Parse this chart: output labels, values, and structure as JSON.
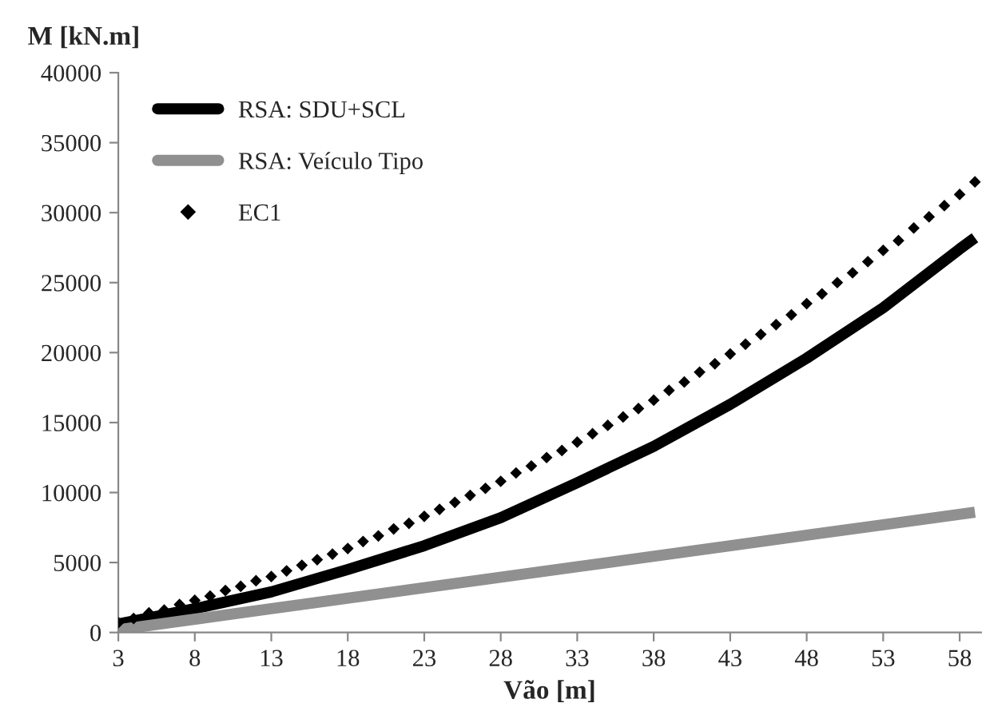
{
  "chart_data": {
    "type": "line",
    "xlabel": "Vão [m]",
    "ylabel": "M [kN.m]",
    "xlim": [
      3,
      59.4
    ],
    "xticks": [
      3,
      8,
      13,
      18,
      23,
      28,
      33,
      38,
      43,
      48,
      53,
      58
    ],
    "ylim": [
      0,
      40000
    ],
    "yticks": [
      0,
      5000,
      10000,
      15000,
      20000,
      25000,
      30000,
      35000,
      40000
    ],
    "grid": false,
    "legend": "top left",
    "series": [
      {
        "name": "RSA: SDU+SCL",
        "color": "#000000",
        "x": [
          3,
          8,
          13,
          18,
          23,
          28,
          33,
          38,
          43,
          48,
          53,
          58,
          59
        ],
        "values": [
          600,
          1700,
          2900,
          4500,
          6200,
          8200,
          10700,
          13300,
          16300,
          19600,
          23200,
          27400,
          28200
        ]
      },
      {
        "name": "RSA: Veículo Tipo",
        "color": "#909090",
        "x": [
          3,
          13,
          23,
          33,
          43,
          53,
          59
        ],
        "values": [
          200,
          1700,
          3200,
          4700,
          6200,
          7700,
          8600
        ]
      },
      {
        "name": "EC1",
        "color": "#000000",
        "type": "scatter",
        "marker": "diamond",
        "x": [
          3,
          4,
          5,
          6,
          7,
          8,
          9,
          10,
          11,
          12,
          13,
          14,
          15,
          16,
          17,
          18,
          19,
          20,
          21,
          22,
          23,
          24,
          25,
          26,
          27,
          28,
          29,
          30,
          31,
          32,
          33,
          34,
          35,
          36,
          37,
          38,
          39,
          40,
          41,
          42,
          43,
          44,
          45,
          46,
          47,
          48,
          49,
          50,
          51,
          52,
          53,
          54,
          55,
          56,
          57,
          58,
          59
        ],
        "values": [
          700,
          1000,
          1400,
          1600,
          2000,
          2300,
          2600,
          3000,
          3300,
          3700,
          4000,
          4400,
          4800,
          5200,
          5600,
          6000,
          6500,
          6900,
          7400,
          7800,
          8300,
          8800,
          9300,
          9800,
          10300,
          10800,
          11400,
          11900,
          12500,
          13000,
          13600,
          14200,
          14800,
          15400,
          16000,
          16600,
          17300,
          17900,
          18600,
          19200,
          19900,
          20600,
          21300,
          22000,
          22700,
          23500,
          24200,
          25000,
          25700,
          26500,
          27300,
          28000,
          28900,
          29700,
          30500,
          31300,
          32200
        ]
      }
    ]
  }
}
